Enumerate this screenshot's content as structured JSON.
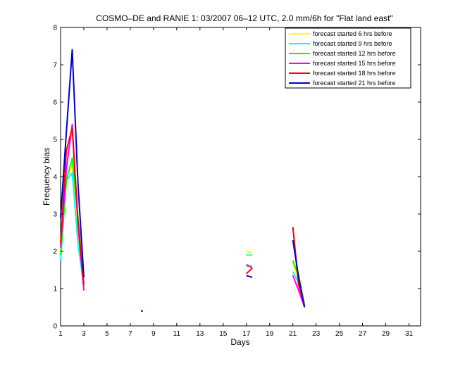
{
  "chart_data": {
    "type": "line",
    "title": "COSMO–DE and RANIE 1: 03/2007 06–12 UTC, 2.0 mm/6h for \"Flat land east\"",
    "xlabel": "Days",
    "ylabel": "Frequency bias",
    "xlim": [
      1,
      32
    ],
    "ylim": [
      0,
      8
    ],
    "xticks": [
      1,
      3,
      5,
      7,
      9,
      11,
      13,
      15,
      17,
      19,
      21,
      23,
      25,
      27,
      29,
      31
    ],
    "yticks": [
      0,
      1,
      2,
      3,
      4,
      5,
      6,
      7,
      8
    ],
    "grid": false,
    "legend_position": "top-right",
    "series": [
      {
        "name": "forecast started 6 hrs before",
        "color": "#ffff00",
        "segments": [
          [
            [
              1,
              2.0
            ],
            [
              1.5,
              4.0
            ],
            [
              2,
              4.3
            ],
            [
              2.5,
              2.3
            ],
            [
              3,
              1.1
            ]
          ],
          [
            [
              17,
              2.0
            ],
            [
              17.5,
              1.95
            ]
          ],
          [
            [
              21,
              1.7
            ],
            [
              21.5,
              1.2
            ],
            [
              22,
              0.6
            ]
          ]
        ]
      },
      {
        "name": "forecast started 9 hrs before",
        "color": "#00ffff",
        "segments": [
          [
            [
              1,
              1.75
            ],
            [
              1.5,
              3.9
            ],
            [
              2,
              4.1
            ],
            [
              2.5,
              2.2
            ],
            [
              3,
              1.05
            ]
          ],
          [
            [
              17,
              1.9
            ],
            [
              17.5,
              1.9
            ]
          ],
          [
            [
              21,
              1.45
            ],
            [
              21.5,
              1.15
            ],
            [
              22,
              0.55
            ]
          ]
        ]
      },
      {
        "name": "forecast started 12 hrs before",
        "color": "#00ff00",
        "segments": [
          [
            [
              1,
              1.9
            ],
            [
              1.5,
              3.9
            ],
            [
              2,
              4.5
            ],
            [
              2.5,
              2.9
            ],
            [
              3,
              1.05
            ]
          ],
          [
            [
              17,
              1.6
            ],
            [
              17.5,
              1.6
            ]
          ],
          [
            [
              21,
              1.75
            ],
            [
              21.5,
              1.35
            ],
            [
              22,
              0.55
            ]
          ]
        ]
      },
      {
        "name": "forecast started 15 hrs before",
        "color": "#ff00ff",
        "segments": [
          [
            [
              1,
              2.1
            ],
            [
              1.5,
              4.2
            ],
            [
              2,
              5.4
            ],
            [
              2.5,
              2.7
            ],
            [
              3,
              0.95
            ]
          ],
          [
            [
              17,
              1.65
            ],
            [
              17.5,
              1.55
            ]
          ],
          [
            [
              21,
              1.35
            ],
            [
              21.5,
              0.95
            ],
            [
              22,
              0.5
            ]
          ]
        ]
      },
      {
        "name": "forecast started 18 hrs before",
        "color": "#ff0000",
        "segments": [
          [
            [
              1,
              2.2
            ],
            [
              1.5,
              4.7
            ],
            [
              2,
              5.3
            ],
            [
              2.5,
              2.8
            ],
            [
              3,
              1.1
            ]
          ],
          [
            [
              17,
              1.4
            ],
            [
              17.5,
              1.55
            ]
          ],
          [
            [
              21,
              2.65
            ],
            [
              21.5,
              1.1
            ],
            [
              22,
              0.55
            ]
          ]
        ]
      },
      {
        "name": "forecast started 21 hrs before",
        "color": "#0000cc",
        "segments": [
          [
            [
              1,
              2.9
            ],
            [
              1.5,
              5.2
            ],
            [
              2,
              7.4
            ],
            [
              2.5,
              3.8
            ],
            [
              3,
              1.3
            ]
          ],
          [
            [
              17,
              1.35
            ],
            [
              17.5,
              1.3
            ]
          ],
          [
            [
              8,
              0.4
            ]
          ],
          [
            [
              21,
              2.3
            ],
            [
              21.5,
              1.3
            ],
            [
              22,
              0.5
            ]
          ]
        ]
      }
    ]
  }
}
